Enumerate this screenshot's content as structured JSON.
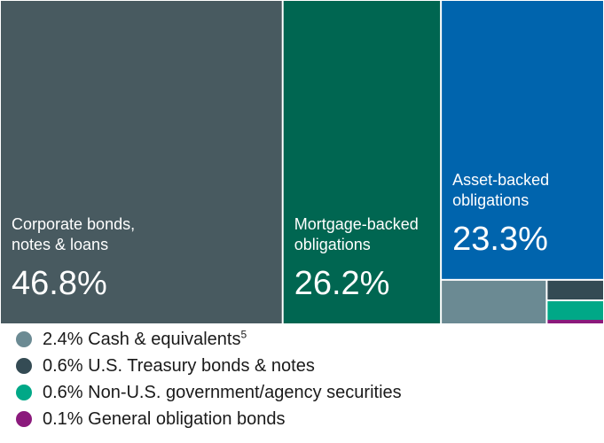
{
  "chart_data": {
    "type": "treemap",
    "unit": "%",
    "segments": [
      {
        "name": "Corporate bonds, notes & loans",
        "label_lines": [
          "Corporate bonds,",
          "notes & loans"
        ],
        "value": 46.8,
        "value_label": "46.8%",
        "color": "#485a60"
      },
      {
        "name": "Mortgage-backed obligations",
        "label_lines": [
          "Mortgage-backed",
          "obligations"
        ],
        "value": 26.2,
        "value_label": "26.2%",
        "color": "#006651"
      },
      {
        "name": "Asset-backed obligations",
        "label_lines": [
          "Asset-backed",
          "obligations"
        ],
        "value": 23.3,
        "value_label": "23.3%",
        "color": "#0064ad"
      },
      {
        "name": "Cash & equivalents",
        "value": 2.4,
        "color": "#6b8a93"
      },
      {
        "name": "U.S. Treasury bonds & notes",
        "value": 0.6,
        "color": "#344b54"
      },
      {
        "name": "Non-U.S. government/agency securities",
        "value": 0.6,
        "color": "#00a887"
      },
      {
        "name": "General obligation bonds",
        "value": 0.1,
        "color": "#8b1a7c"
      }
    ],
    "legend": [
      {
        "text": "2.4% Cash & equivalents",
        "footnote": "5",
        "color": "#6b8a93"
      },
      {
        "text": "0.6% U.S. Treasury bonds & notes",
        "footnote": "",
        "color": "#344b54"
      },
      {
        "text": "0.6% Non-U.S. government/agency securities",
        "footnote": "",
        "color": "#00a887"
      },
      {
        "text": "0.1% General obligation bonds",
        "footnote": "",
        "color": "#8b1a7c"
      }
    ]
  }
}
